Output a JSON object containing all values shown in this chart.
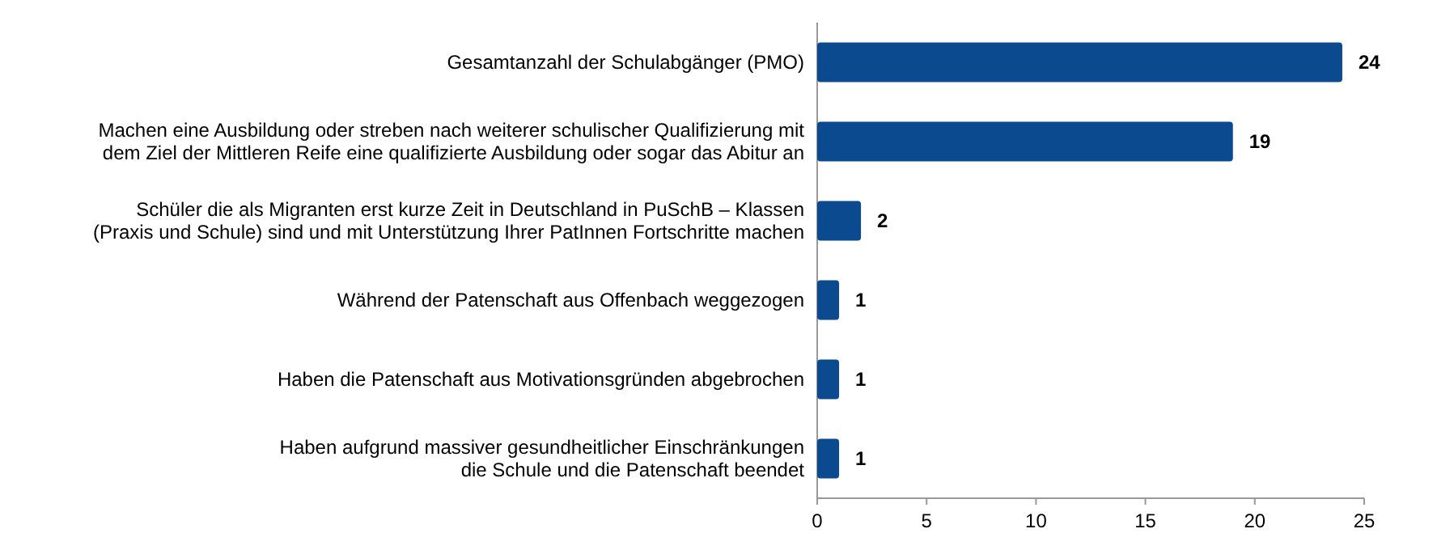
{
  "chart_data": {
    "type": "bar",
    "orientation": "horizontal",
    "categories": [
      "Gesamtanzahl der Schulabgänger (PMO)",
      "Machen eine Ausbildung oder streben nach weiterer schulischer Qualifizierung mit\ndem Ziel der Mittleren Reife eine qualifizierte Ausbildung oder sogar das Abitur an",
      "Schüler die als Migranten erst kurze Zeit in Deutschland in PuSchB – Klassen\n(Praxis und Schule) sind und mit Unterstützung Ihrer PatInnen Fortschritte machen",
      "Während der Patenschaft aus Offenbach weggezogen",
      "Haben die Patenschaft aus Motivationsgründen abgebrochen",
      "Haben aufgrund massiver gesundheitlicher Einschränkungen\ndie Schule und die Patenschaft beendet"
    ],
    "values": [
      24,
      19,
      2,
      1,
      1,
      1
    ],
    "color": "#0b4a8e",
    "xlim": [
      0,
      25
    ],
    "xticks": [
      0,
      5,
      10,
      15,
      20,
      25
    ],
    "data_labels": true
  }
}
